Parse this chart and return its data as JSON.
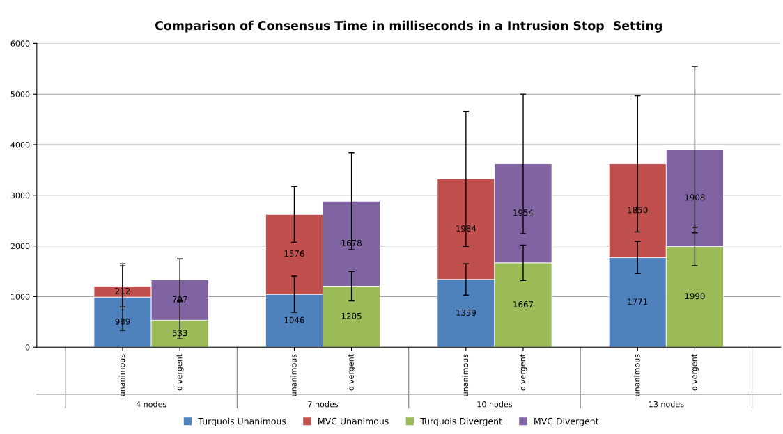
{
  "chart_data": {
    "type": "bar",
    "stacked": true,
    "title": "Comparison of Consensus Time in milliseconds in a Intrusion Stop  Setting",
    "categories": [
      "unanimous",
      "divergent",
      "unanimous",
      "divergent",
      "unanimous",
      "divergent",
      "unanimous",
      "divergent"
    ],
    "series": [
      {
        "name": "Turquois Unanimous",
        "color": "#4f81bd",
        "values": [
          989,
          null,
          1046,
          null,
          1339,
          null,
          1771,
          null
        ],
        "errors": [
          659,
          null,
          357,
          null,
          310,
          null,
          316,
          null
        ]
      },
      {
        "name": "MVC Unanimous",
        "color": "#c0504d",
        "values": [
          212,
          null,
          1576,
          null,
          1984,
          null,
          1850,
          null
        ],
        "errors": [
          405,
          null,
          550,
          null,
          1332,
          null,
          1345,
          null
        ]
      },
      {
        "name": "Turquois Divergent",
        "color": "#9bbb59",
        "values": [
          null,
          533,
          null,
          1205,
          null,
          1667,
          null,
          1990
        ],
        "errors": [
          null,
          368,
          null,
          290,
          null,
          350,
          null,
          378
        ]
      },
      {
        "name": "MVC Divergent",
        "color": "#8064a2",
        "values": [
          null,
          797,
          null,
          1678,
          null,
          1954,
          null,
          1908
        ],
        "errors": [
          null,
          414,
          null,
          955,
          null,
          1380,
          null,
          1640
        ]
      }
    ],
    "annotations": [
      "4 nodes",
      "7 nodes",
      "10 nodes",
      "13 nodes"
    ],
    "ylim": [
      0,
      6000
    ],
    "yticks": [
      0,
      1000,
      2000,
      3000,
      4000,
      5000,
      6000
    ],
    "grid": "y",
    "legend": "bottom",
    "data_labels": true
  }
}
